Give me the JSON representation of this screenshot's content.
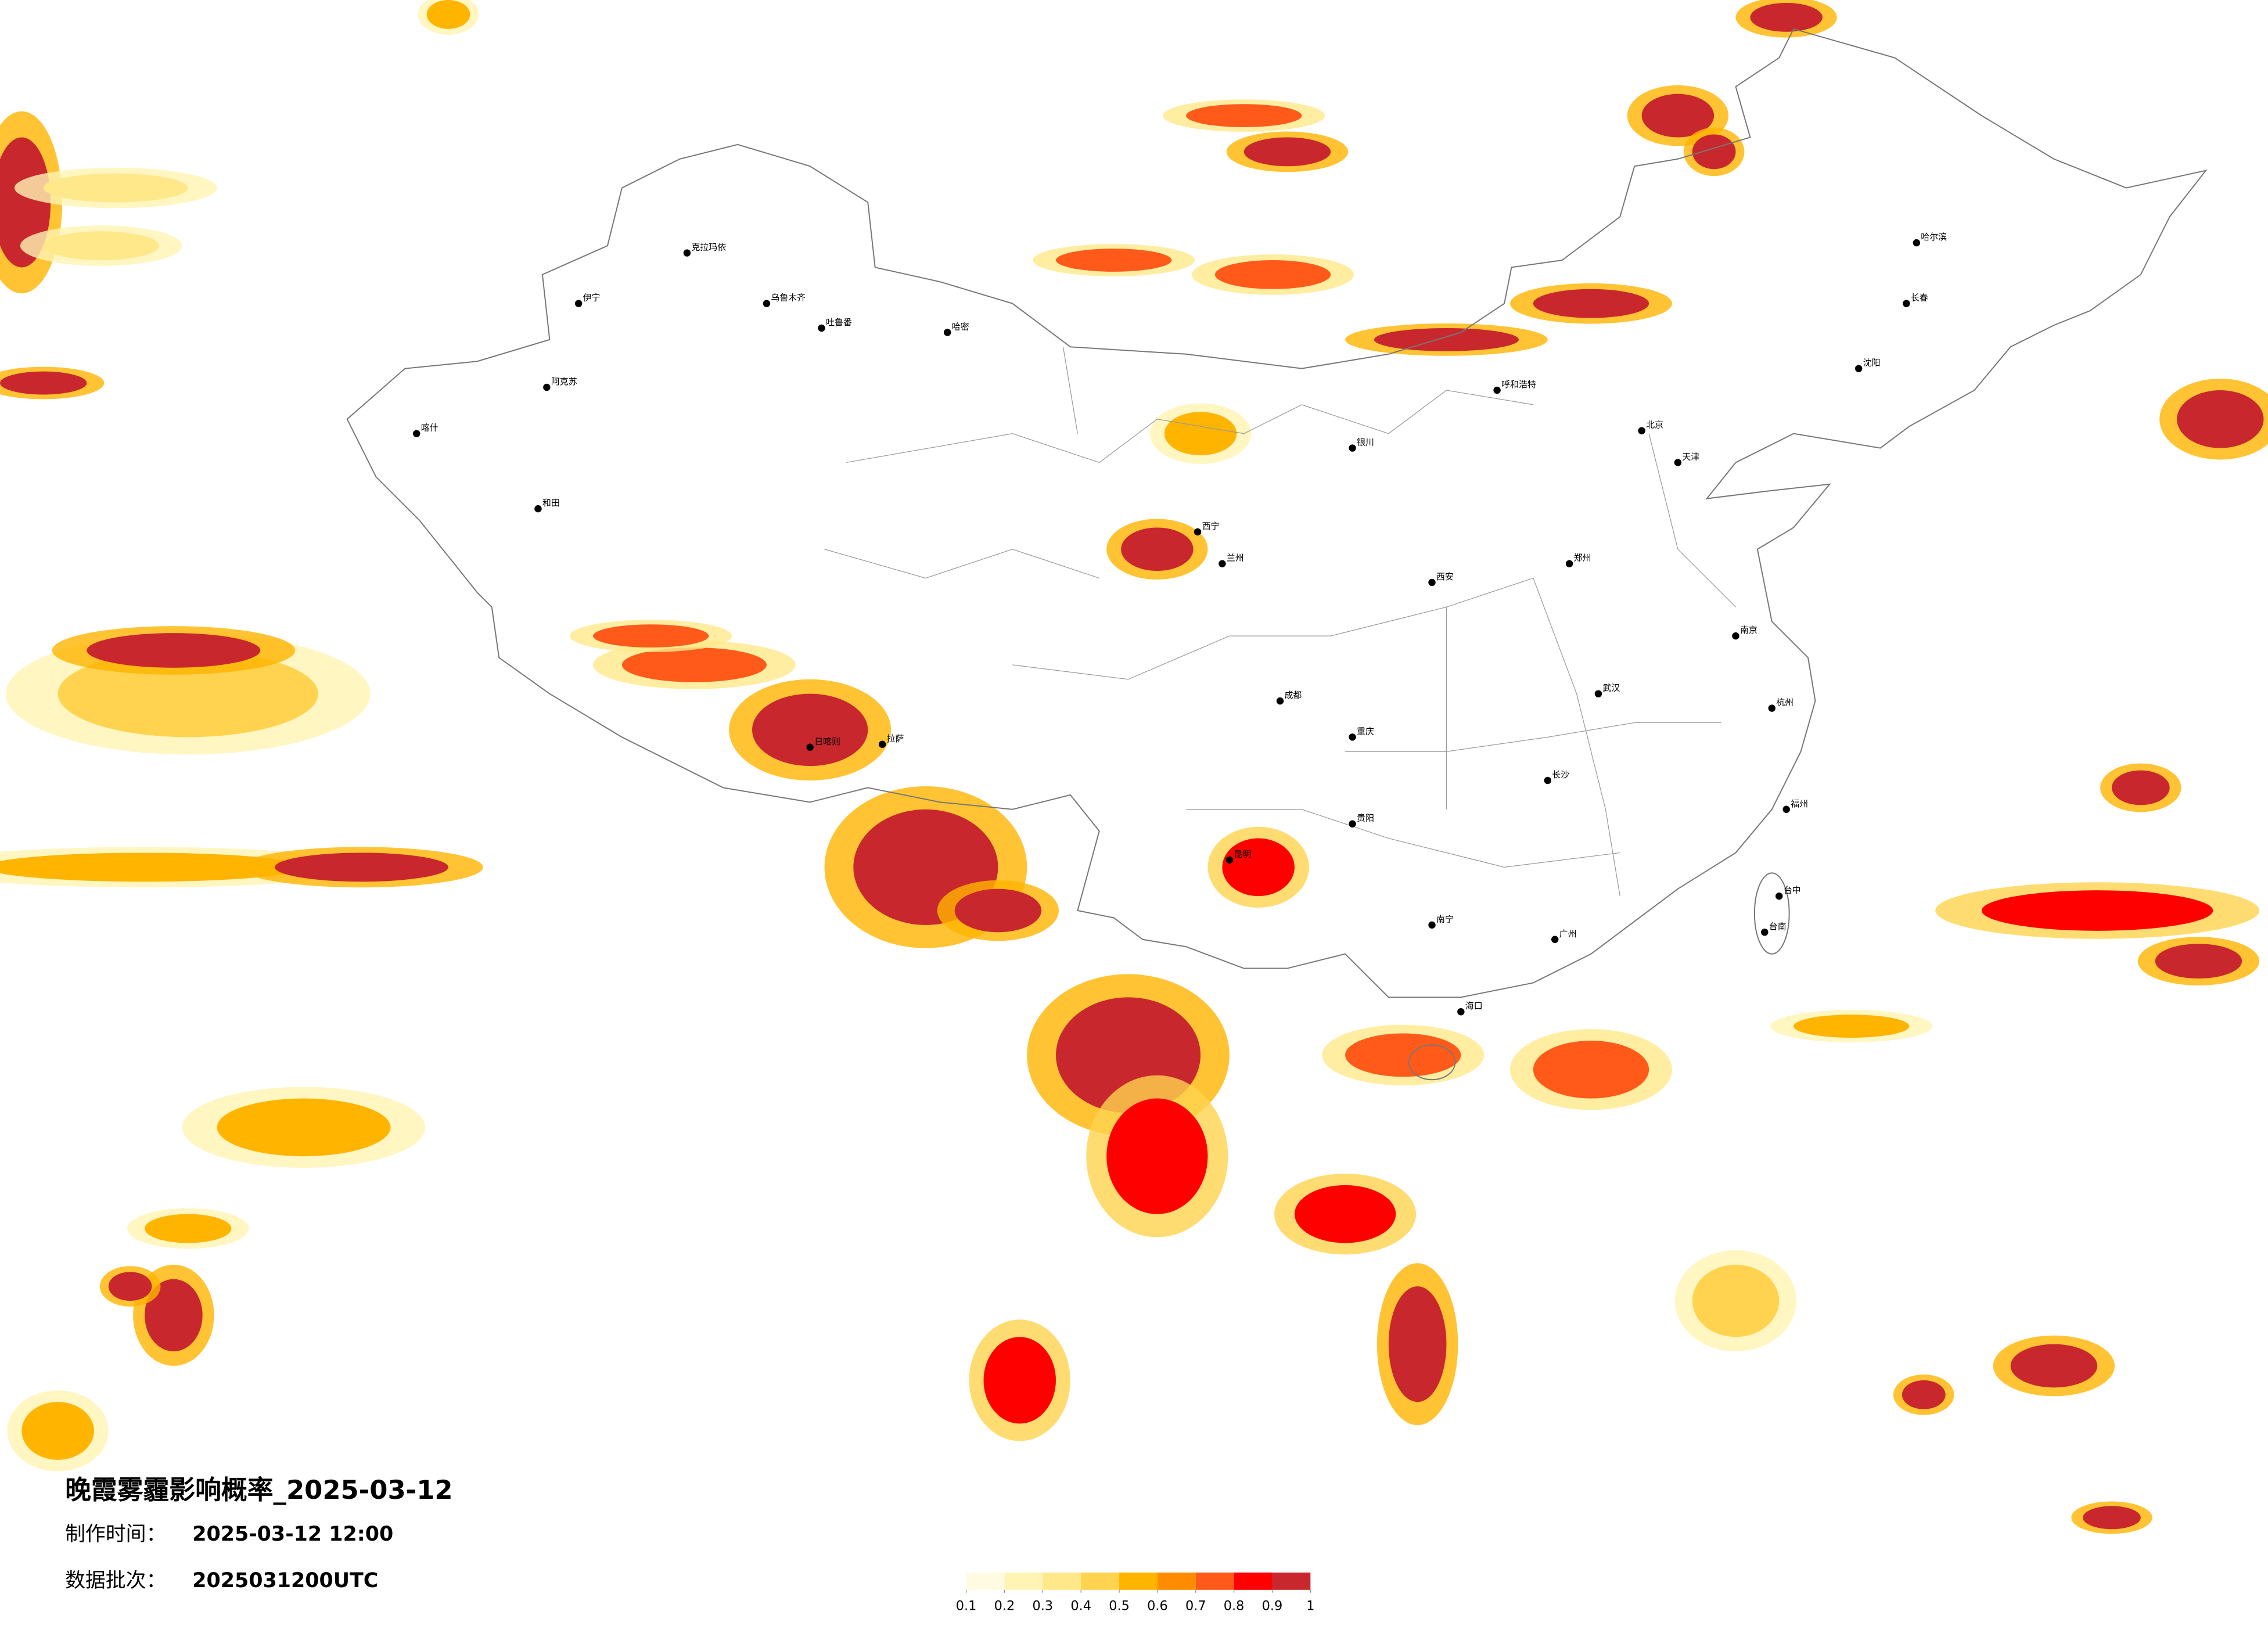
{
  "title": "晚霞雾霾影响概率_2025-03-12",
  "production_time_label": "制作时间：",
  "production_time": "2025-03-12 12:00",
  "batch_label": "数据批次：",
  "batch": "2025031200UTC",
  "legend": {
    "ticks": [
      0.1,
      0.2,
      0.3,
      0.4,
      0.5,
      0.6,
      0.7,
      0.8,
      0.9,
      1
    ],
    "colors": [
      "#fffbe3",
      "#fff4b3",
      "#ffe88a",
      "#ffd34f",
      "#ffb400",
      "#ff8c00",
      "#ff5a1a",
      "#ff0000",
      "#c8282d"
    ]
  },
  "cities": [
    "克拉玛依",
    "乌鲁木齐",
    "吐鲁番",
    "哈密",
    "伊宁",
    "阿克苏",
    "喀什",
    "和田",
    "拉萨",
    "日喀则",
    "西宁",
    "兰州",
    "银川",
    "呼和浩特",
    "北京",
    "天津",
    "哈尔滨",
    "长春",
    "沈阳",
    "成都",
    "西安",
    "郑州",
    "武汉",
    "长沙",
    "南京",
    "杭州",
    "福州",
    "广州",
    "南宁",
    "昆明",
    "贵阳",
    "重庆",
    "海口",
    "台中",
    "台南"
  ]
}
